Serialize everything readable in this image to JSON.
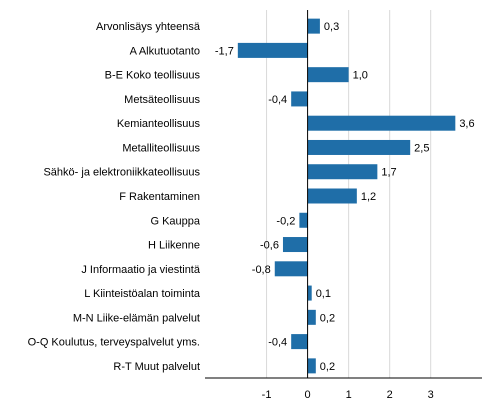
{
  "chart_data": {
    "type": "bar",
    "orientation": "horizontal",
    "categories": [
      "Arvonlisäys yhteensä",
      "A Alkutuotanto",
      "B-E Koko teollisuus",
      "Metsäteollisuus",
      "Kemianteollisuus",
      "Metalliteollisuus",
      "Sähkö- ja elektroniikkateollisuus",
      "F Rakentaminen",
      "G Kauppa",
      "H Liikenne",
      "J Informaatio ja viestintä",
      "L Kiinteistöalan toiminta",
      "M-N Liike-elämän palvelut",
      "O-Q Koulutus, terveyspalvelut yms.",
      "R-T Muut palvelut"
    ],
    "values": [
      0.3,
      -1.7,
      1.0,
      -0.4,
      3.6,
      2.5,
      1.7,
      1.2,
      -0.2,
      -0.6,
      -0.8,
      0.1,
      0.2,
      -0.4,
      0.2
    ],
    "value_labels": [
      "0,3",
      "-1,7",
      "1,0",
      "-0,4",
      "3,6",
      "2,5",
      "1,7",
      "1,2",
      "-0,2",
      "-0,6",
      "-0,8",
      "0,1",
      "0,2",
      "-0,4",
      "0,2"
    ],
    "xlim": [
      -2.5,
      4.25
    ],
    "xticks": [
      -1,
      0,
      1,
      2,
      3
    ],
    "xtick_labels": [
      "-1",
      "0",
      "1",
      "2",
      "3"
    ],
    "grid": "vertical",
    "title": "",
    "xlabel": "",
    "ylabel": "",
    "colors": {
      "bar": "#1f6ea8",
      "grid": "#d9d9d9",
      "zero_line": "#000000",
      "text": "#000000"
    }
  }
}
